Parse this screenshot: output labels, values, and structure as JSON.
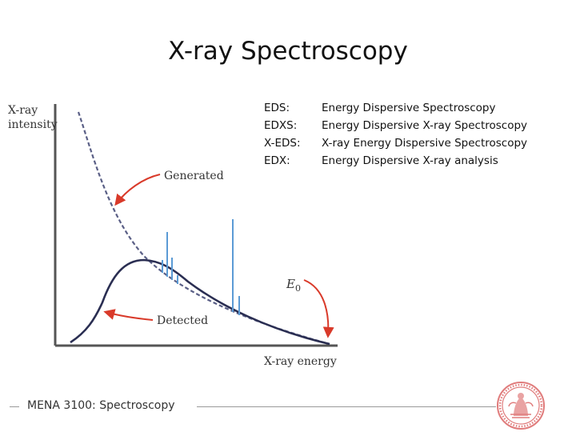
{
  "slide": {
    "title": "X-ray Spectroscopy"
  },
  "graph": {
    "y_axis_label_line1": "X-ray",
    "y_axis_label_line2": "intensity",
    "x_axis_label": "X-ray energy",
    "generated_label": "Generated",
    "detected_label": "Detected",
    "e0_label": "E",
    "e0_subscript": "0",
    "curve_colors": {
      "generated": "#5a5f86",
      "detected": "#2a2e52",
      "peaks": "#5b9bd5",
      "arrows": "#d93a2a"
    }
  },
  "abbreviations": [
    {
      "term": "EDS:",
      "definition": "Energy Dispersive Spectroscopy"
    },
    {
      "term": "EDXS:",
      "definition": "Energy Dispersive X-ray Spectroscopy"
    },
    {
      "term": "X-EDS:",
      "definition": "X-ray Energy Dispersive Spectroscopy"
    },
    {
      "term": "EDX:",
      "definition": "Energy Dispersive X-ray analysis"
    }
  ],
  "footer": {
    "text": "MENA 3100: Spectroscopy",
    "seal_icon": "university-seal-icon",
    "seal_color": "#e07c7c"
  }
}
